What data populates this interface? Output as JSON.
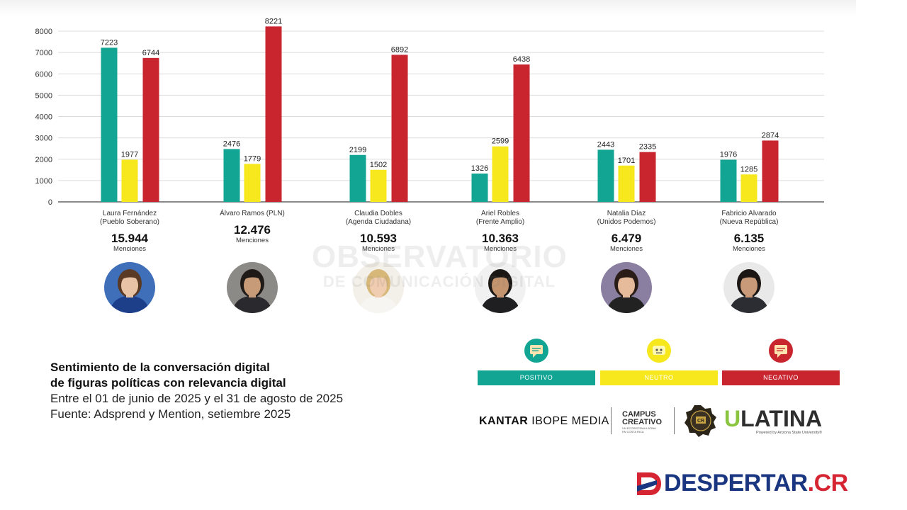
{
  "chart_data": {
    "type": "bar",
    "title": "",
    "xlabel": "",
    "ylabel": "",
    "ylim": [
      0,
      8000
    ],
    "yticks": [
      0,
      1000,
      2000,
      3000,
      4000,
      5000,
      6000,
      7000,
      8000
    ],
    "grid": true,
    "categories": [
      "Laura Fernández (Pueblo Soberano)",
      "Álvaro Ramos (PLN)",
      "Claudia Dobles (Agenda Ciudadana)",
      "Ariel Robles (Frente Amplio)",
      "Natalia Díaz (Unidos Podemos)",
      "Fabricio Alvarado (Nueva República)"
    ],
    "series": [
      {
        "name": "POSITIVO",
        "color": "#12a594",
        "values": [
          7223,
          2476,
          2199,
          1326,
          2443,
          1976
        ]
      },
      {
        "name": "NEUTRO",
        "color": "#f7e81e",
        "values": [
          1977,
          1779,
          1502,
          2599,
          1701,
          1285
        ]
      },
      {
        "name": "NEGATIVO",
        "color": "#c8252f",
        "values": [
          6744,
          8221,
          6892,
          6438,
          2335,
          2874
        ]
      }
    ],
    "bar_labels": [
      [
        "7223",
        "1977",
        "6744"
      ],
      [
        "2476",
        "1779",
        "8221"
      ],
      [
        "2199",
        "1502",
        "6892"
      ],
      [
        "1326",
        "2599",
        "6438"
      ],
      [
        "2443",
        "1701",
        "2335"
      ],
      [
        "1976",
        "1285",
        "2874"
      ]
    ]
  },
  "candidates": [
    {
      "name": "Laura Fernández",
      "party": "(Pueblo Soberano)",
      "total": "15.944",
      "unit": "Menciones",
      "bg": "#3e6fb8",
      "skin": "#e9c3a5",
      "hair": "#5a3a24",
      "shirt": "#1d3f8a"
    },
    {
      "name": "Álvaro Ramos (PLN)",
      "party": "",
      "total": "12.476",
      "unit": "Menciones",
      "bg": "#8c8a86",
      "skin": "#c79a78",
      "hair": "#1f1a17",
      "shirt": "#2a2a2e"
    },
    {
      "name": "Claudia Dobles",
      "party": "(Agenda Ciudadana)",
      "total": "10.593",
      "unit": "Menciones",
      "bg": "#f3efe9",
      "skin": "#f0cdb0",
      "hair": "#d8b879",
      "shirt": "#f7f5f2"
    },
    {
      "name": "Ariel Robles",
      "party": "(Frente Amplio)",
      "total": "10.363",
      "unit": "Menciones",
      "bg": "#f1f1f1",
      "skin": "#c4946e",
      "hair": "#1b1714",
      "shirt": "#1f1f22"
    },
    {
      "name": "Natalia Díaz",
      "party": "(Unidos Podemos)",
      "total": "6.479",
      "unit": "Menciones",
      "bg": "#8a7fa0",
      "skin": "#e6bb9b",
      "hair": "#2a1c16",
      "shirt": "#222"
    },
    {
      "name": "Fabricio Alvarado",
      "party": "(Nueva República)",
      "total": "6.135",
      "unit": "Menciones",
      "bg": "#e9e9e9",
      "skin": "#c99a7a",
      "hair": "#1c1714",
      "shirt": "#2b2d33"
    }
  ],
  "watermark": {
    "line1": "OBSERVATORIO",
    "line2": "DE COMUNICACIÓN DIGITAL"
  },
  "caption": {
    "title_line1": "Sentimiento de la conversación digital",
    "title_line2": "de figuras políticas con relevancia digital",
    "period": "Entre el 01 de junio de 2025 y el 31 de agosto de 2025",
    "source": "Fuente: Adsprend y Mention, setiembre 2025"
  },
  "legend": [
    {
      "label": "POSITIVO",
      "color": "#12a594",
      "icon_bg": "#12a594",
      "icon": "chat-bubble-icon"
    },
    {
      "label": "NEUTRO",
      "color": "#f7e81e",
      "icon_bg": "#f7e81e",
      "icon": "neutral-face-icon"
    },
    {
      "label": "NEGATIVO",
      "color": "#c8252f",
      "icon_bg": "#c8252f",
      "icon": "chat-bubble-icon"
    }
  ],
  "logos": {
    "kantar_a": "KANTAR",
    "kantar_b": " IBOPE MEDIA",
    "campus_1": "CAMPUS",
    "campus_2": "CREATIVO",
    "campus_small": "UN ECOSISTEMA LATINA EN COSTA RICA",
    "seal_text": "CR",
    "ulatina_u": "U",
    "ulatina_rest": "LATINA",
    "ulatina_sub": "Powered by Arizona State University®"
  },
  "brand": {
    "name": "DESPERTAR",
    "tld": ".CR"
  }
}
